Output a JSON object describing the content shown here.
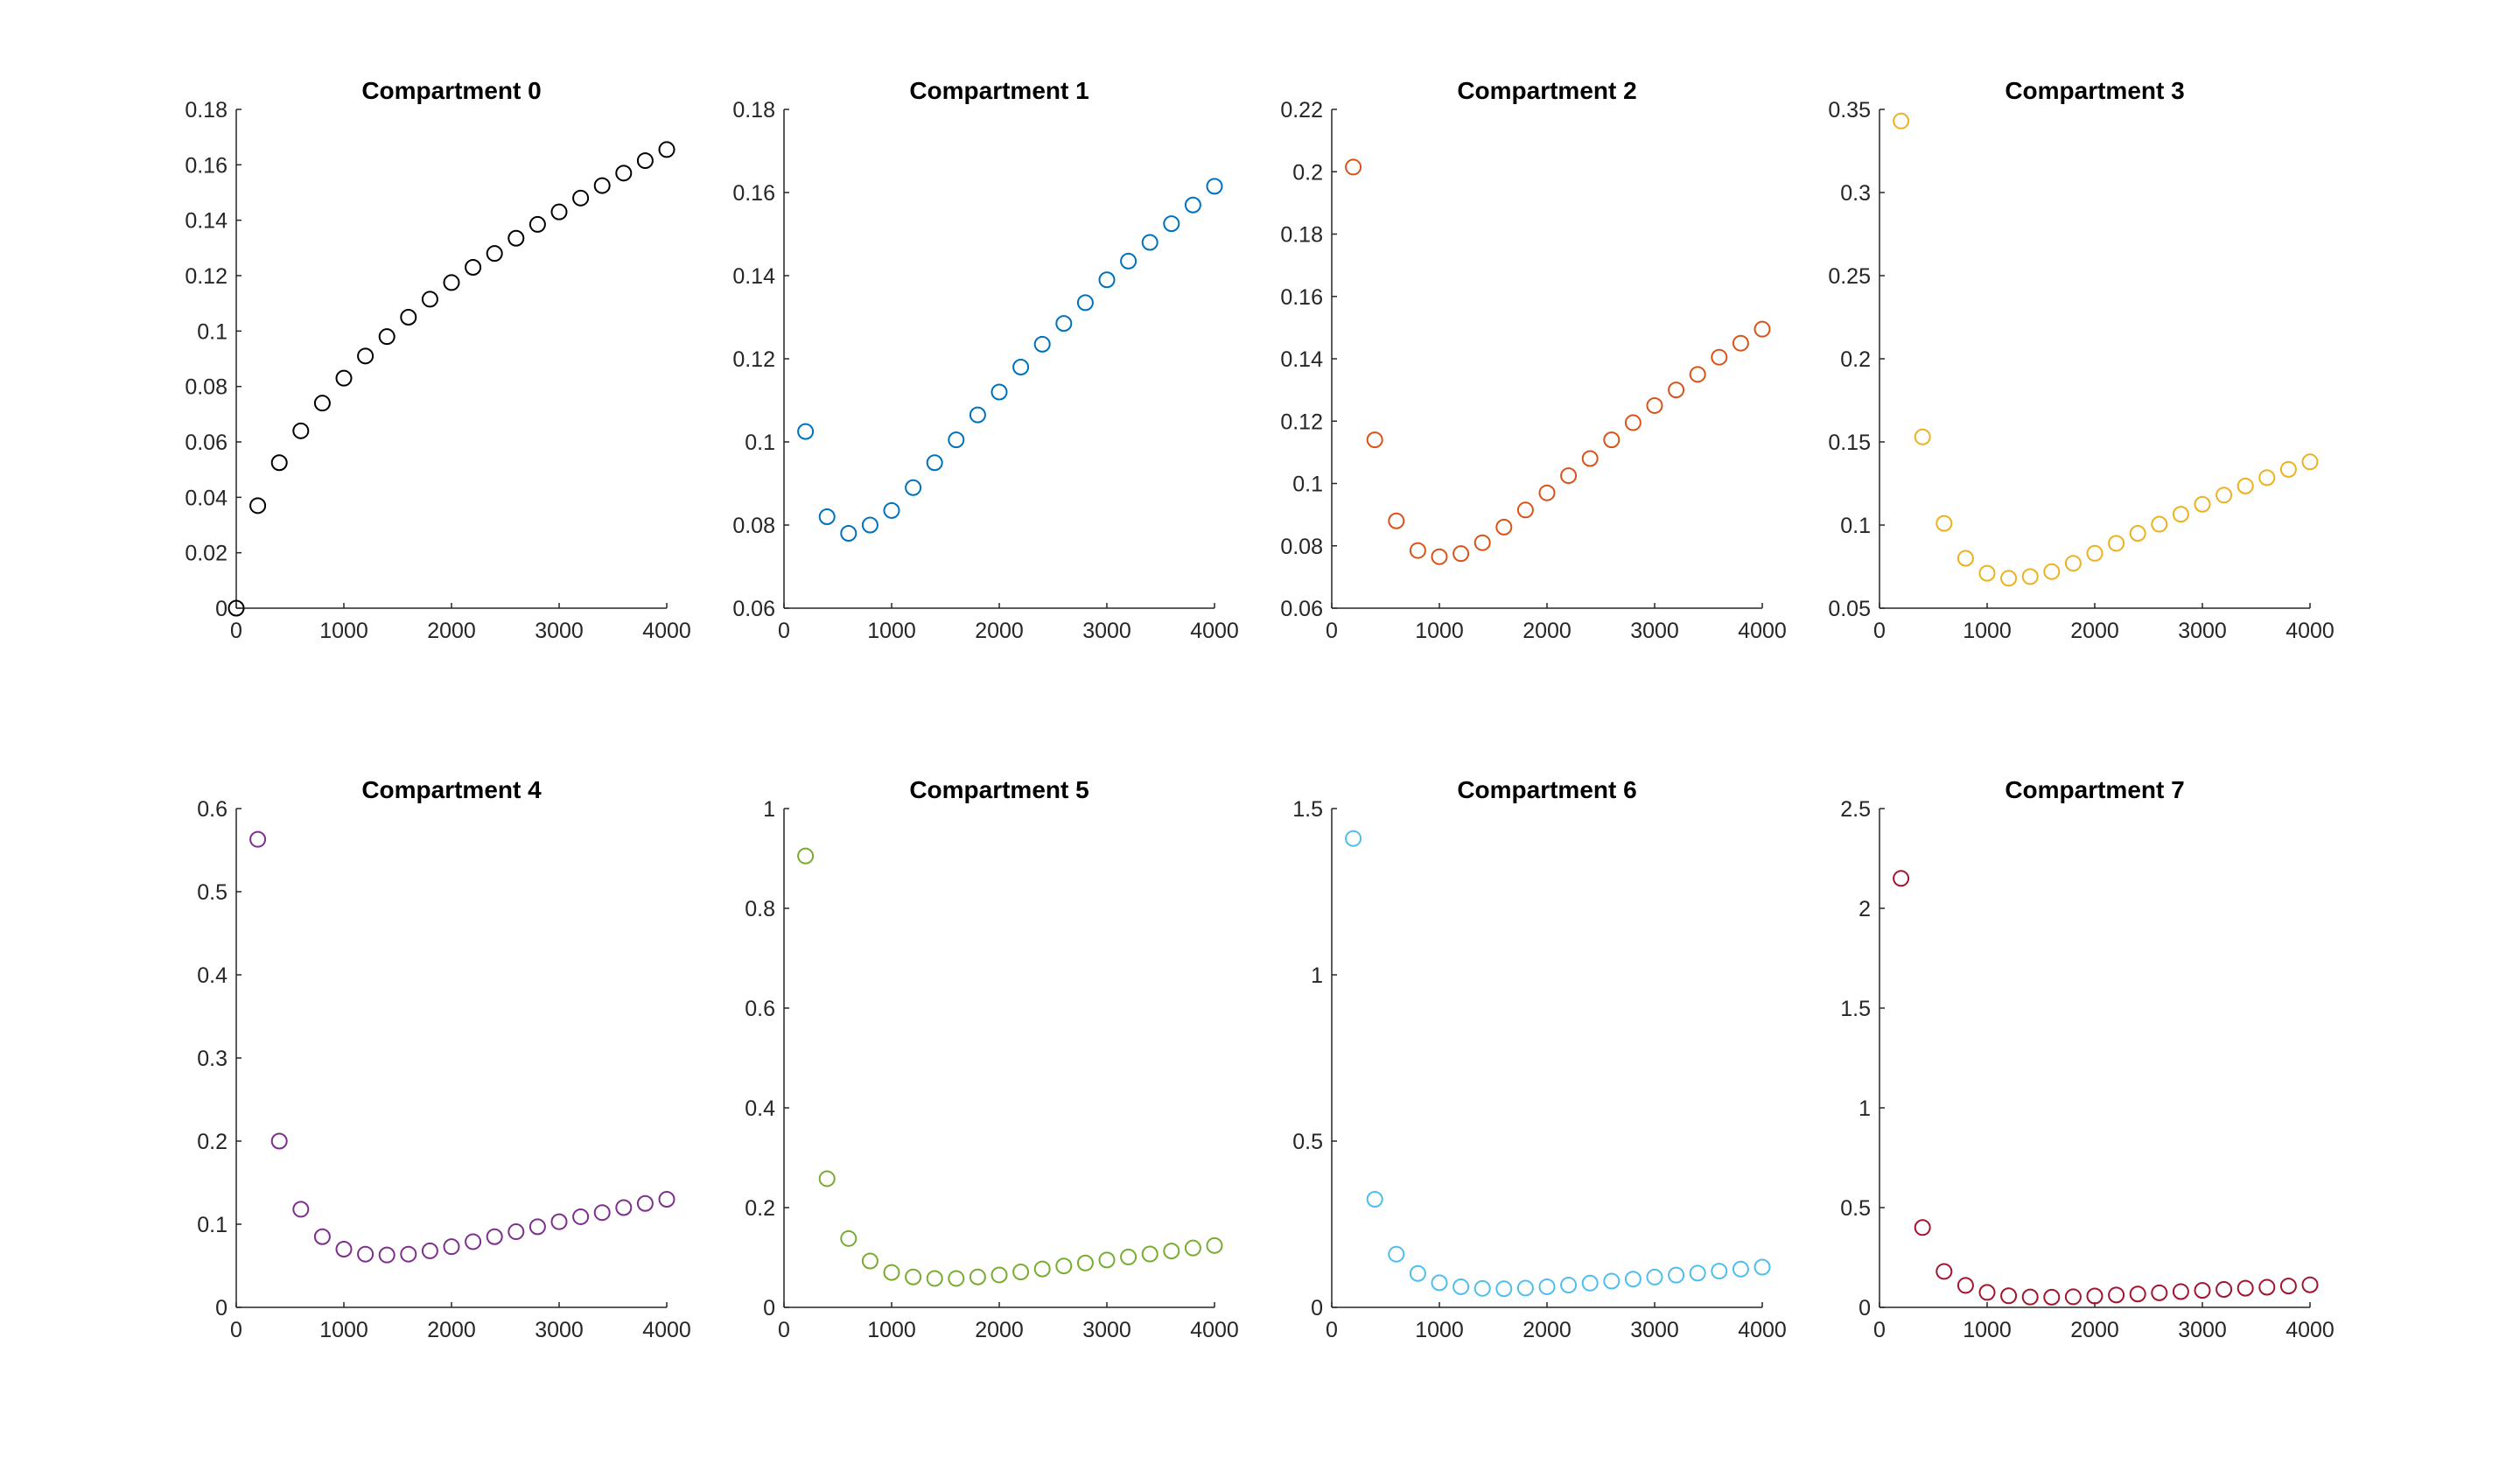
{
  "chart_data": [
    {
      "type": "scatter",
      "title": "Compartment 0",
      "color": "#000000",
      "xlim": [
        0,
        4000
      ],
      "ylim": [
        0,
        0.18
      ],
      "xticks": [
        "0",
        "1000",
        "2000",
        "3000",
        "4000"
      ],
      "xtick_values": [
        0,
        1000,
        2000,
        3000,
        4000
      ],
      "yticks": [
        "0",
        "0.02",
        "0.04",
        "0.06",
        "0.08",
        "0.1",
        "0.12",
        "0.14",
        "0.16",
        "0.18"
      ],
      "ytick_values": [
        0,
        0.02,
        0.04,
        0.06,
        0.08,
        0.1,
        0.12,
        0.14,
        0.16,
        0.18
      ],
      "x": [
        0,
        200,
        400,
        600,
        800,
        1000,
        1200,
        1400,
        1600,
        1800,
        2000,
        2200,
        2400,
        2600,
        2800,
        3000,
        3200,
        3400,
        3600,
        3800,
        4000
      ],
      "y": [
        0,
        0.037,
        0.0525,
        0.064,
        0.074,
        0.083,
        0.091,
        0.098,
        0.105,
        0.1115,
        0.1175,
        0.123,
        0.128,
        0.1335,
        0.1385,
        0.143,
        0.148,
        0.1525,
        0.157,
        0.1615,
        0.1655
      ]
    },
    {
      "type": "scatter",
      "title": "Compartment 1",
      "color": "#0072BD",
      "xlim": [
        0,
        4000
      ],
      "ylim": [
        0.06,
        0.18
      ],
      "xticks": [
        "0",
        "1000",
        "2000",
        "3000",
        "4000"
      ],
      "xtick_values": [
        0,
        1000,
        2000,
        3000,
        4000
      ],
      "yticks": [
        "0.06",
        "0.08",
        "0.1",
        "0.12",
        "0.14",
        "0.16",
        "0.18"
      ],
      "ytick_values": [
        0.06,
        0.08,
        0.1,
        0.12,
        0.14,
        0.16,
        0.18
      ],
      "x": [
        200,
        400,
        600,
        800,
        1000,
        1200,
        1400,
        1600,
        1800,
        2000,
        2200,
        2400,
        2600,
        2800,
        3000,
        3200,
        3400,
        3600,
        3800,
        4000
      ],
      "y": [
        0.1025,
        0.082,
        0.078,
        0.08,
        0.0835,
        0.089,
        0.095,
        0.1005,
        0.1065,
        0.112,
        0.118,
        0.1235,
        0.1285,
        0.1335,
        0.139,
        0.1435,
        0.148,
        0.1525,
        0.157,
        0.1615
      ]
    },
    {
      "type": "scatter",
      "title": "Compartment 2",
      "color": "#D95319",
      "xlim": [
        0,
        4000
      ],
      "ylim": [
        0.06,
        0.22
      ],
      "xticks": [
        "0",
        "1000",
        "2000",
        "3000",
        "4000"
      ],
      "xtick_values": [
        0,
        1000,
        2000,
        3000,
        4000
      ],
      "yticks": [
        "0.06",
        "0.08",
        "0.1",
        "0.12",
        "0.14",
        "0.16",
        "0.18",
        "0.2",
        "0.22"
      ],
      "ytick_values": [
        0.06,
        0.08,
        0.1,
        0.12,
        0.14,
        0.16,
        0.18,
        0.2,
        0.22
      ],
      "x": [
        200,
        400,
        600,
        800,
        1000,
        1200,
        1400,
        1600,
        1800,
        2000,
        2200,
        2400,
        2600,
        2800,
        3000,
        3200,
        3400,
        3600,
        3800,
        4000
      ],
      "y": [
        0.2015,
        0.114,
        0.088,
        0.0785,
        0.0765,
        0.0775,
        0.081,
        0.086,
        0.0915,
        0.097,
        0.1025,
        0.108,
        0.114,
        0.1195,
        0.125,
        0.13,
        0.135,
        0.1405,
        0.145,
        0.1495
      ]
    },
    {
      "type": "scatter",
      "title": "Compartment 3",
      "color": "#EDB120",
      "xlim": [
        0,
        4000
      ],
      "ylim": [
        0.05,
        0.35
      ],
      "xticks": [
        "0",
        "1000",
        "2000",
        "3000",
        "4000"
      ],
      "xtick_values": [
        0,
        1000,
        2000,
        3000,
        4000
      ],
      "yticks": [
        "0.05",
        "0.1",
        "0.15",
        "0.2",
        "0.25",
        "0.3",
        "0.35"
      ],
      "ytick_values": [
        0.05,
        0.1,
        0.15,
        0.2,
        0.25,
        0.3,
        0.35
      ],
      "x": [
        200,
        400,
        600,
        800,
        1000,
        1200,
        1400,
        1600,
        1800,
        2000,
        2200,
        2400,
        2600,
        2800,
        3000,
        3200,
        3400,
        3600,
        3800,
        4000
      ],
      "y": [
        0.343,
        0.153,
        0.101,
        0.08,
        0.071,
        0.068,
        0.069,
        0.072,
        0.077,
        0.083,
        0.089,
        0.095,
        0.1005,
        0.1065,
        0.1125,
        0.118,
        0.1235,
        0.1285,
        0.1335,
        0.138
      ]
    },
    {
      "type": "scatter",
      "title": "Compartment 4",
      "color": "#7E2F8E",
      "xlim": [
        0,
        4000
      ],
      "ylim": [
        0,
        0.6
      ],
      "xticks": [
        "0",
        "1000",
        "2000",
        "3000",
        "4000"
      ],
      "xtick_values": [
        0,
        1000,
        2000,
        3000,
        4000
      ],
      "yticks": [
        "0",
        "0.1",
        "0.2",
        "0.3",
        "0.4",
        "0.5",
        "0.6"
      ],
      "ytick_values": [
        0,
        0.1,
        0.2,
        0.3,
        0.4,
        0.5,
        0.6
      ],
      "x": [
        200,
        400,
        600,
        800,
        1000,
        1200,
        1400,
        1600,
        1800,
        2000,
        2200,
        2400,
        2600,
        2800,
        3000,
        3200,
        3400,
        3600,
        3800,
        4000
      ],
      "y": [
        0.563,
        0.2,
        0.118,
        0.085,
        0.07,
        0.064,
        0.063,
        0.064,
        0.068,
        0.073,
        0.079,
        0.085,
        0.091,
        0.097,
        0.103,
        0.109,
        0.114,
        0.12,
        0.125,
        0.13
      ]
    },
    {
      "type": "scatter",
      "title": "Compartment 5",
      "color": "#77AC30",
      "xlim": [
        0,
        4000
      ],
      "ylim": [
        0,
        1
      ],
      "xticks": [
        "0",
        "1000",
        "2000",
        "3000",
        "4000"
      ],
      "xtick_values": [
        0,
        1000,
        2000,
        3000,
        4000
      ],
      "yticks": [
        "0",
        "0.2",
        "0.4",
        "0.6",
        "0.8",
        "1"
      ],
      "ytick_values": [
        0,
        0.2,
        0.4,
        0.6,
        0.8,
        1
      ],
      "x": [
        200,
        400,
        600,
        800,
        1000,
        1200,
        1400,
        1600,
        1800,
        2000,
        2200,
        2400,
        2600,
        2800,
        3000,
        3200,
        3400,
        3600,
        3800,
        4000
      ],
      "y": [
        0.905,
        0.258,
        0.138,
        0.093,
        0.07,
        0.061,
        0.058,
        0.058,
        0.061,
        0.065,
        0.071,
        0.077,
        0.083,
        0.089,
        0.095,
        0.101,
        0.107,
        0.113,
        0.119,
        0.124
      ]
    },
    {
      "type": "scatter",
      "title": "Compartment 6",
      "color": "#4DBEEE",
      "xlim": [
        0,
        4000
      ],
      "ylim": [
        0,
        1.5
      ],
      "xticks": [
        "0",
        "1000",
        "2000",
        "3000",
        "4000"
      ],
      "xtick_values": [
        0,
        1000,
        2000,
        3000,
        4000
      ],
      "yticks": [
        "0",
        "0.5",
        "1",
        "1.5"
      ],
      "ytick_values": [
        0,
        0.5,
        1,
        1.5
      ],
      "x": [
        200,
        400,
        600,
        800,
        1000,
        1200,
        1400,
        1600,
        1800,
        2000,
        2200,
        2400,
        2600,
        2800,
        3000,
        3200,
        3400,
        3600,
        3800,
        4000
      ],
      "y": [
        1.41,
        0.325,
        0.16,
        0.102,
        0.074,
        0.062,
        0.057,
        0.056,
        0.058,
        0.062,
        0.067,
        0.073,
        0.079,
        0.085,
        0.091,
        0.097,
        0.103,
        0.109,
        0.115,
        0.121
      ]
    },
    {
      "type": "scatter",
      "title": "Compartment 7",
      "color": "#A2142F",
      "xlim": [
        0,
        4000
      ],
      "ylim": [
        0,
        2.5
      ],
      "xticks": [
        "0",
        "1000",
        "2000",
        "3000",
        "4000"
      ],
      "xtick_values": [
        0,
        1000,
        2000,
        3000,
        4000
      ],
      "yticks": [
        "0",
        "0.5",
        "1",
        "1.5",
        "2",
        "2.5"
      ],
      "ytick_values": [
        0,
        0.5,
        1,
        1.5,
        2,
        2.5
      ],
      "x": [
        200,
        400,
        600,
        800,
        1000,
        1200,
        1400,
        1600,
        1800,
        2000,
        2200,
        2400,
        2600,
        2800,
        3000,
        3200,
        3400,
        3600,
        3800,
        4000
      ],
      "y": [
        2.15,
        0.4,
        0.18,
        0.11,
        0.075,
        0.058,
        0.052,
        0.051,
        0.053,
        0.057,
        0.062,
        0.067,
        0.073,
        0.079,
        0.085,
        0.09,
        0.096,
        0.101,
        0.107,
        0.113
      ]
    }
  ]
}
